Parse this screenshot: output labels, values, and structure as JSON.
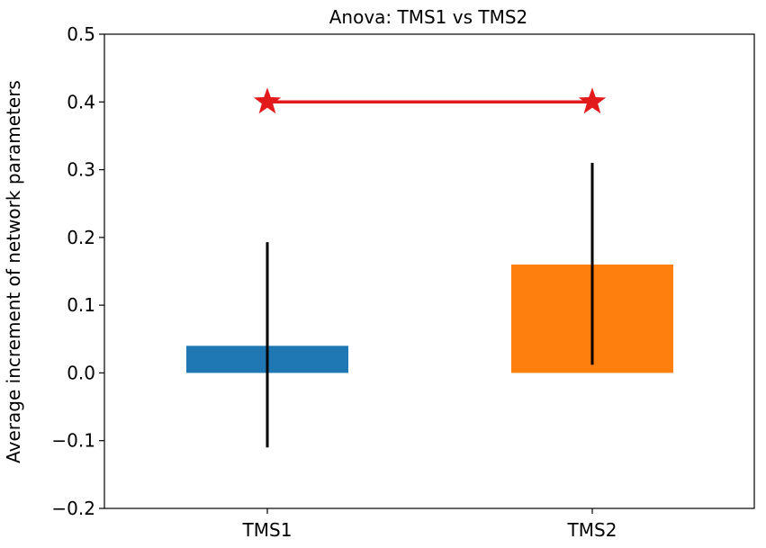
{
  "chart_data": {
    "type": "bar",
    "title": "Anova: TMS1 vs TMS2",
    "xlabel": "",
    "ylabel": "Average increment of network parameters",
    "categories": [
      "TMS1",
      "TMS2"
    ],
    "values": [
      0.04,
      0.16
    ],
    "error_bars": [
      {
        "low": -0.11,
        "high": 0.193
      },
      {
        "low": 0.012,
        "high": 0.31
      }
    ],
    "colors": [
      "#1f77b4",
      "#ff7f0e"
    ],
    "ylim": [
      -0.2,
      0.5
    ],
    "yticks": [
      -0.2,
      -0.1,
      0.0,
      0.1,
      0.2,
      0.3,
      0.4,
      0.5
    ],
    "ytick_labels": [
      "−0.2",
      "−0.1",
      "0.0",
      "0.1",
      "0.2",
      "0.3",
      "0.4",
      "0.5"
    ],
    "significance": {
      "y": 0.4,
      "between": [
        "TMS1",
        "TMS2"
      ],
      "color": "#e31a1c",
      "marker": "star"
    },
    "grid": false
  }
}
